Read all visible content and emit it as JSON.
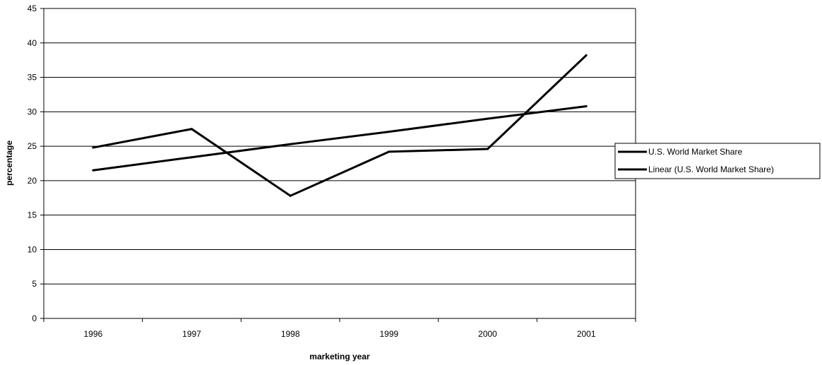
{
  "chart_data": {
    "type": "line",
    "xlabel": "marketing year",
    "ylabel": "percentage",
    "categories": [
      "1996",
      "1997",
      "1998",
      "1999",
      "2000",
      "2001"
    ],
    "ylim": [
      0,
      45
    ],
    "yticks": [
      0,
      5,
      10,
      15,
      20,
      25,
      30,
      35,
      40,
      45
    ],
    "grid": true,
    "legend_position": "right",
    "series": [
      {
        "name": "U.S. World Market Share",
        "values": [
          24.8,
          27.5,
          17.8,
          24.2,
          24.6,
          38.2
        ],
        "color": "#000000"
      },
      {
        "name": "Linear (U.S. World Market Share)",
        "values": [
          21.5,
          23.4,
          25.3,
          27.1,
          29.0,
          30.8
        ],
        "color": "#000000"
      }
    ]
  }
}
